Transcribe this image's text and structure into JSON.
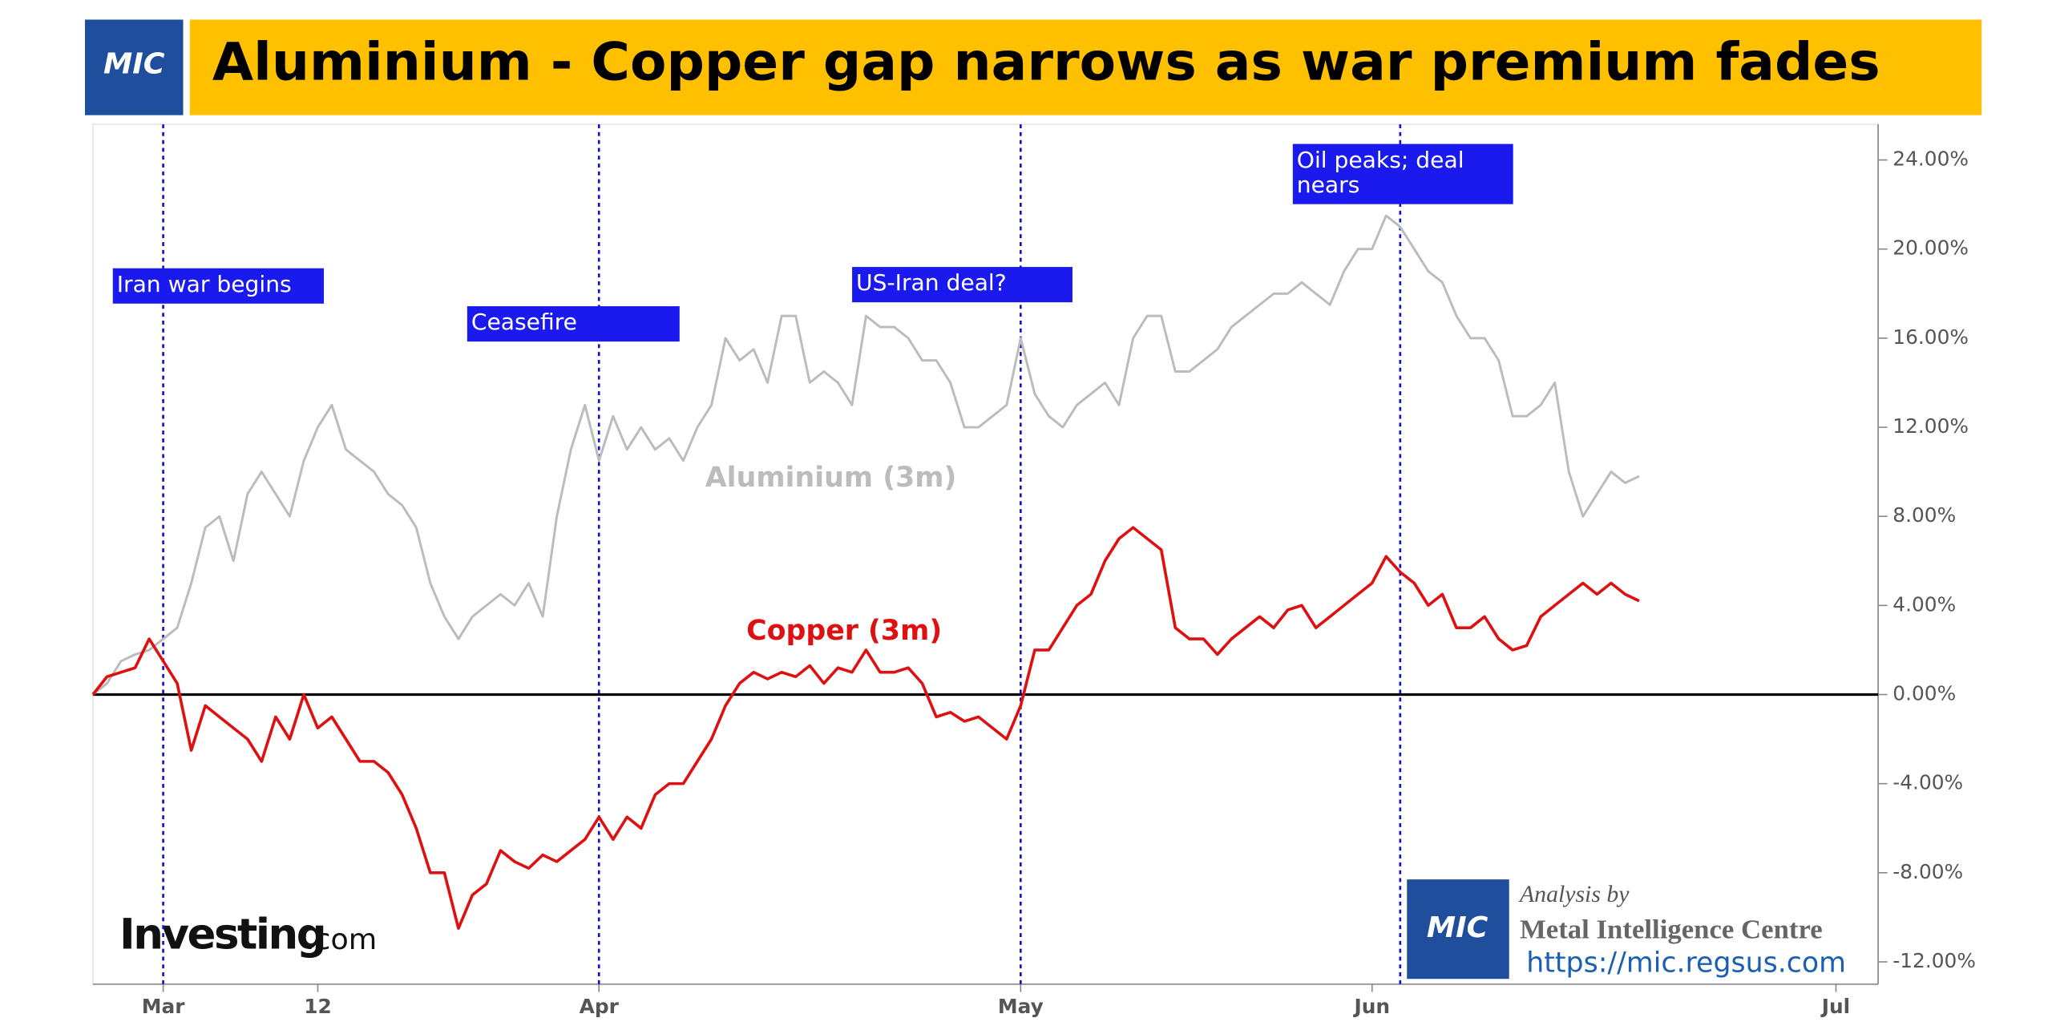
{
  "header": {
    "logo": "MIC",
    "title": "Aluminium - Copper gap narrows as war premium fades"
  },
  "chart_data": {
    "type": "line",
    "x": [
      -5,
      -4,
      -3,
      -2,
      -1,
      0,
      1,
      2,
      3,
      4,
      5,
      6,
      7,
      8,
      9,
      10,
      11,
      12,
      13,
      14,
      15,
      16,
      17,
      18,
      19,
      20,
      21,
      22,
      23,
      24,
      25,
      26,
      27,
      28,
      29,
      30,
      31,
      32,
      33,
      34,
      35,
      36,
      37,
      38,
      39,
      40,
      41,
      42,
      43,
      44,
      45,
      46,
      47,
      48,
      49,
      50,
      51,
      52,
      53,
      54,
      55,
      56,
      57,
      58,
      59,
      60,
      61,
      62,
      63,
      64,
      65,
      66,
      67,
      68,
      69,
      70,
      71,
      72,
      73,
      74,
      75,
      76,
      77,
      78,
      79,
      80,
      81,
      82,
      83,
      84,
      85,
      86,
      87,
      88,
      89,
      90,
      91,
      92,
      93,
      94,
      95,
      96,
      97,
      98,
      99,
      100,
      101,
      102,
      103,
      104,
      105
    ],
    "series": [
      {
        "name": "Aluminium (3m)",
        "color": "#bcbcbc",
        "values": [
          0,
          0.5,
          1.5,
          1.8,
          2,
          2.5,
          3,
          5,
          7.5,
          8,
          6,
          9,
          10,
          9,
          8,
          10.5,
          12,
          13,
          11,
          10.5,
          10,
          9,
          8.5,
          7.5,
          5,
          3.5,
          2.5,
          3.5,
          4,
          4.5,
          4,
          5,
          3.5,
          8,
          11,
          13,
          10.5,
          12.5,
          11,
          12,
          11,
          11.5,
          10.5,
          12,
          13,
          16,
          15,
          15.5,
          14,
          17,
          17,
          14,
          14.5,
          14,
          13,
          17,
          16.5,
          16.5,
          16,
          15,
          15,
          14,
          12,
          12,
          12.5,
          13,
          16,
          13.5,
          12.5,
          12,
          13,
          13.5,
          14,
          13,
          16,
          17,
          17,
          14.5,
          14.5,
          15,
          15.5,
          16.5,
          17,
          17.5,
          18,
          18,
          18.5,
          18,
          17.5,
          19,
          20,
          20,
          21.5,
          21,
          20,
          19,
          18.5,
          17,
          16,
          16,
          15,
          12.5,
          12.5,
          13,
          14,
          10,
          8,
          9,
          10,
          9.5,
          9.8
        ]
      },
      {
        "name": "Copper (3m)",
        "color": "#dd1111",
        "values": [
          0,
          0.8,
          1,
          1.2,
          2.5,
          1.5,
          0.5,
          -2.5,
          -0.5,
          -1,
          -1.5,
          -2,
          -3,
          -1,
          -2,
          0,
          -1.5,
          -1,
          -2,
          -3,
          -3,
          -3.5,
          -4.5,
          -6,
          -8,
          -8,
          -10.5,
          -9,
          -8.5,
          -7,
          -7.5,
          -7.8,
          -7.2,
          -7.5,
          -7,
          -6.5,
          -5.5,
          -6.5,
          -5.5,
          -6,
          -4.5,
          -4,
          -4,
          -3,
          -2,
          -0.5,
          0.5,
          1,
          0.7,
          1,
          0.8,
          1.3,
          0.5,
          1.2,
          1,
          2,
          1,
          1,
          1.2,
          0.5,
          -1,
          -0.8,
          -1.2,
          -1,
          -1.5,
          -2,
          -0.5,
          2,
          2,
          3,
          4,
          4.5,
          6,
          7,
          7.5,
          7,
          6.5,
          3,
          2.5,
          2.5,
          1.8,
          2.5,
          3,
          3.5,
          3,
          3.8,
          4,
          3,
          3.5,
          4,
          4.5,
          5,
          6.2,
          5.5,
          5,
          4,
          4.5,
          3,
          3,
          3.5,
          2.5,
          2,
          2.2,
          3.5,
          4,
          4.5,
          5,
          4.5,
          5,
          4.5,
          4.2
        ]
      }
    ],
    "xlim": [
      -5,
      122
    ],
    "xticks": [
      {
        "value": 0,
        "label": "Mar"
      },
      {
        "value": 11,
        "label": "12"
      },
      {
        "value": 31,
        "label": "Apr"
      },
      {
        "value": 61,
        "label": "May"
      },
      {
        "value": 86,
        "label": "Jun"
      },
      {
        "value": 119,
        "label": "Jul"
      }
    ],
    "ylim": [
      -13,
      25.6
    ],
    "yticks": [
      {
        "value": 24,
        "label": "24.00%"
      },
      {
        "value": 20,
        "label": "20.00%"
      },
      {
        "value": 16,
        "label": "16.00%"
      },
      {
        "value": 12,
        "label": "12.00%"
      },
      {
        "value": 8,
        "label": "8.00%"
      },
      {
        "value": 4,
        "label": "4.00%"
      },
      {
        "value": 0,
        "label": "0.00%"
      },
      {
        "value": -4,
        "label": "-4.00%"
      },
      {
        "value": -8,
        "label": "-8.00%"
      },
      {
        "value": -12,
        "label": "-12.00%"
      }
    ],
    "annotations": [
      {
        "x": 0,
        "lines": [
          "Iran war begins"
        ]
      },
      {
        "x": 31,
        "lines": [
          "Ceasefire"
        ]
      },
      {
        "x": 61,
        "lines": [
          "US-Iran deal?"
        ]
      },
      {
        "x": 88,
        "lines": [
          "Oil peaks; deal",
          "nears"
        ]
      }
    ]
  },
  "watermark": [
    "Investing",
    ".com"
  ],
  "credit": {
    "analysis": "Analysis by",
    "org": "Metal Intelligence Centre",
    "url": "https://mic.regsus.com"
  }
}
